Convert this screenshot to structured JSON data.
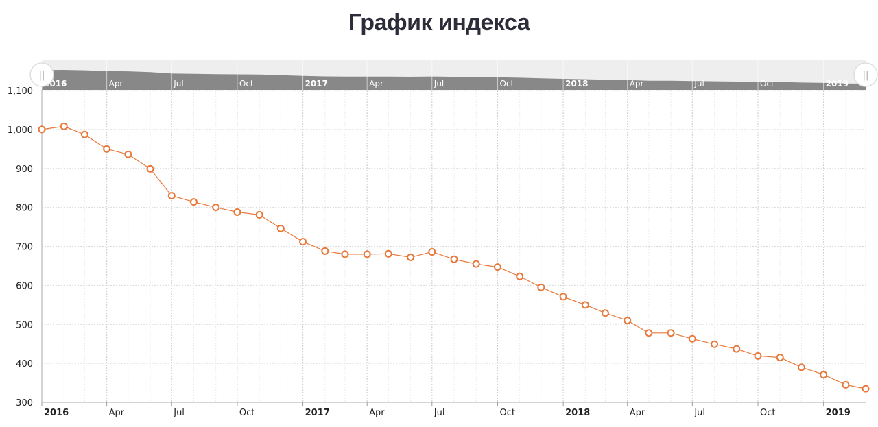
{
  "chart_data": {
    "type": "line",
    "title": "График индекса",
    "xlabel": "",
    "ylabel": "",
    "ylim": [
      300,
      1100
    ],
    "y_ticks": [
      "300",
      "400",
      "500",
      "600",
      "700",
      "800",
      "900",
      "1,000",
      "1,100"
    ],
    "x_tick_labels": [
      {
        "label": "2016",
        "date": "2016-01-01",
        "bold": true
      },
      {
        "label": "Apr",
        "date": "2016-04-01",
        "bold": false
      },
      {
        "label": "Jul",
        "date": "2016-07-01",
        "bold": false
      },
      {
        "label": "Oct",
        "date": "2016-10-01",
        "bold": false
      },
      {
        "label": "2017",
        "date": "2017-01-01",
        "bold": true
      },
      {
        "label": "Apr",
        "date": "2017-04-01",
        "bold": false
      },
      {
        "label": "Jul",
        "date": "2017-07-01",
        "bold": false
      },
      {
        "label": "Oct",
        "date": "2017-10-01",
        "bold": false
      },
      {
        "label": "2018",
        "date": "2018-01-01",
        "bold": true
      },
      {
        "label": "Apr",
        "date": "2018-04-01",
        "bold": false
      },
      {
        "label": "Jul",
        "date": "2018-07-01",
        "bold": false
      },
      {
        "label": "Oct",
        "date": "2018-10-01",
        "bold": false
      },
      {
        "label": "2019",
        "date": "2019-01-01",
        "bold": true
      }
    ],
    "grid": true,
    "legend": "none",
    "series": [
      {
        "x": [
          "2016-01",
          "2016-02",
          "2016-03",
          "2016-04",
          "2016-05",
          "2016-06",
          "2016-07",
          "2016-08",
          "2016-09",
          "2016-10",
          "2016-11",
          "2016-12",
          "2017-01",
          "2017-02",
          "2017-03",
          "2017-04",
          "2017-05",
          "2017-06",
          "2017-07",
          "2017-08",
          "2017-09",
          "2017-10",
          "2017-11",
          "2017-12",
          "2018-01",
          "2018-02",
          "2018-03",
          "2018-04",
          "2018-05",
          "2018-06",
          "2018-07",
          "2018-08",
          "2018-09",
          "2018-10",
          "2018-11",
          "2018-12",
          "2019-01",
          "2019-02",
          "2019-03"
        ],
        "values": [
          1000,
          1008,
          987,
          950,
          936,
          899,
          830,
          814,
          800,
          788,
          781,
          746,
          712,
          688,
          680,
          680,
          681,
          672,
          686,
          667,
          655,
          647,
          623,
          595,
          571,
          550,
          529,
          510,
          478,
          478,
          463,
          449,
          437,
          419,
          415,
          390,
          371,
          345,
          335
        ],
        "color": "#e8783a"
      }
    ],
    "navigator": {
      "labels": [
        {
          "label": "2016",
          "date": "2016-01-01",
          "bold": true
        },
        {
          "label": "Apr",
          "date": "2016-04-01",
          "bold": false
        },
        {
          "label": "Jul",
          "date": "2016-07-01",
          "bold": false
        },
        {
          "label": "Oct",
          "date": "2016-10-01",
          "bold": false
        },
        {
          "label": "2017",
          "date": "2017-01-01",
          "bold": true
        },
        {
          "label": "Apr",
          "date": "2017-04-01",
          "bold": false
        },
        {
          "label": "Jul",
          "date": "2017-07-01",
          "bold": false
        },
        {
          "label": "Oct",
          "date": "2017-10-01",
          "bold": false
        },
        {
          "label": "2018",
          "date": "2018-01-01",
          "bold": true
        },
        {
          "label": "Apr",
          "date": "2018-04-01",
          "bold": false
        },
        {
          "label": "Jul",
          "date": "2018-07-01",
          "bold": false
        },
        {
          "label": "Oct",
          "date": "2018-10-01",
          "bold": false
        },
        {
          "label": "2019",
          "date": "2019-01-01",
          "bold": true
        }
      ],
      "handle_glyph": "||"
    },
    "colors": {
      "line": "#e8783a",
      "marker_fill": "#ffffff",
      "grid": "#d9d9d9",
      "navigator_fill": "#888888",
      "navigator_bg": "#eeeeee",
      "axis_text": "#222222"
    }
  }
}
